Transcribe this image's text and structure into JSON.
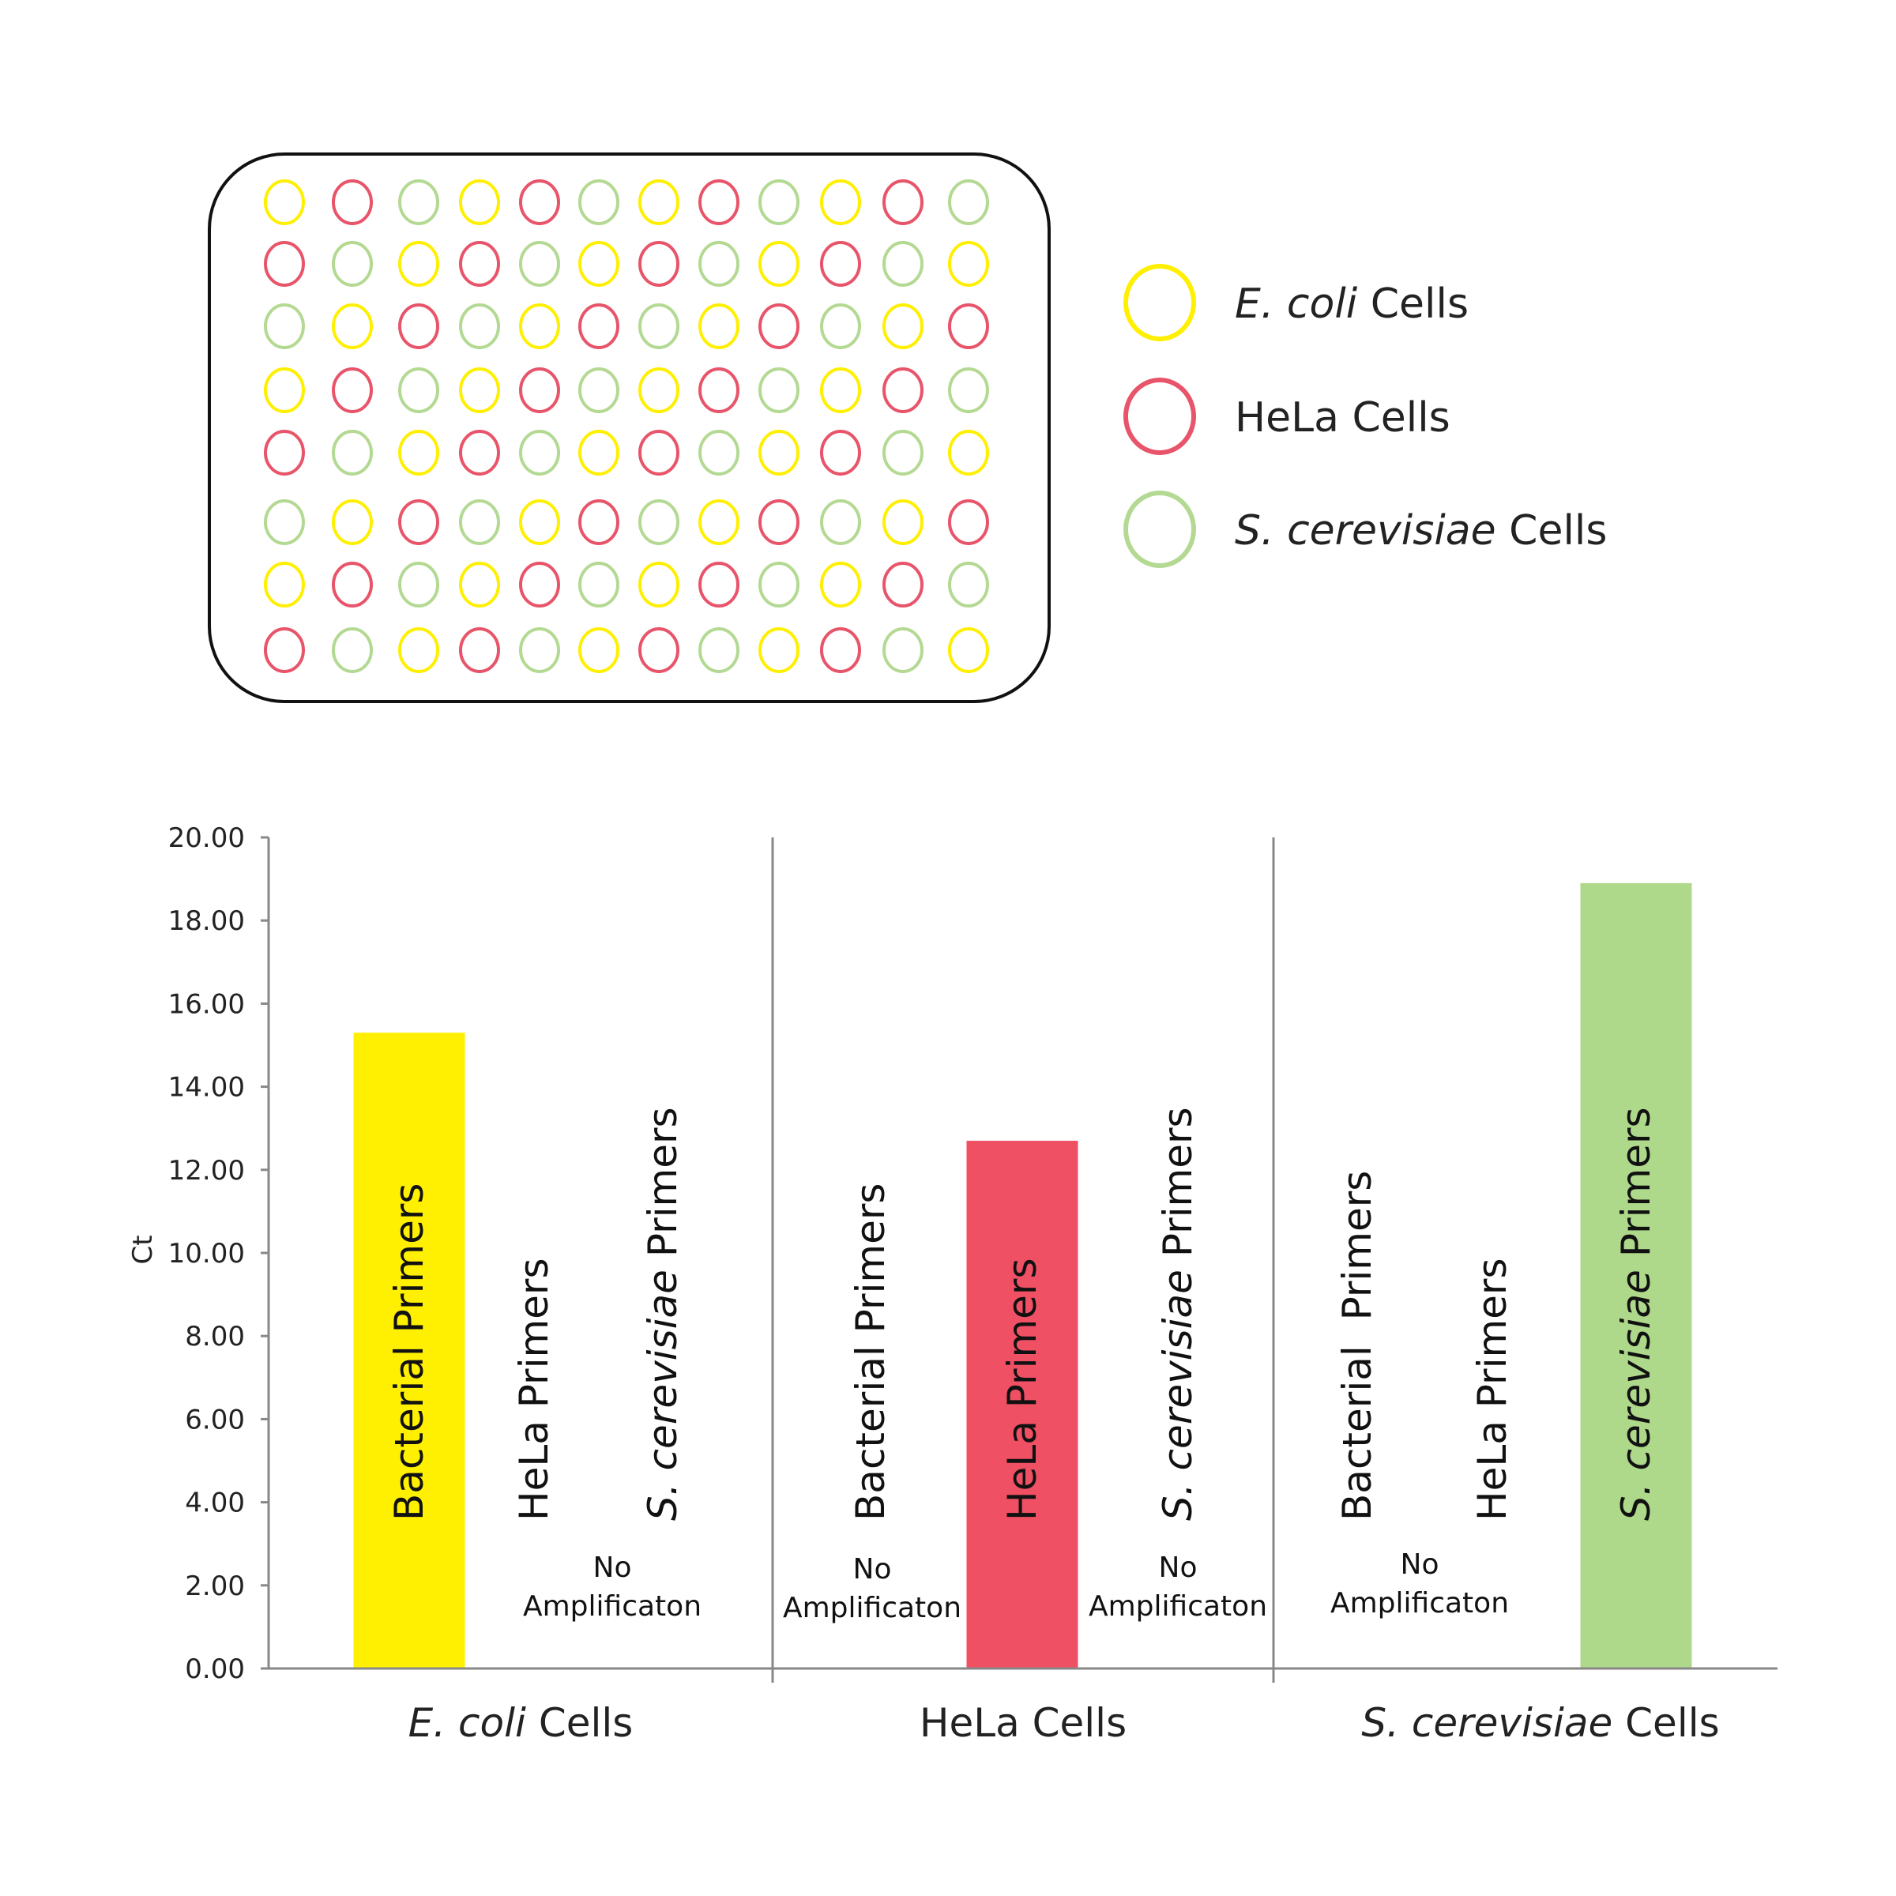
{
  "colors": {
    "ecoli": "#FFEF00",
    "hela": "#F05064",
    "scerevisiae": "#AED88A",
    "ecoli_well": "#FFEF00",
    "hela_well": "#E8546A",
    "scerevisiae_well": "#B3D992",
    "axis": "#888888",
    "plate_border": "#111111"
  },
  "plate": {
    "rows": [
      [
        "E",
        "H",
        "S",
        "E",
        "H",
        "S",
        "E",
        "H",
        "S",
        "E",
        "H",
        "S"
      ],
      [
        "H",
        "S",
        "E",
        "H",
        "S",
        "E",
        "H",
        "S",
        "E",
        "H",
        "S",
        "E"
      ],
      [
        "S",
        "E",
        "H",
        "S",
        "E",
        "H",
        "S",
        "E",
        "H",
        "S",
        "E",
        "H"
      ],
      [
        "E",
        "H",
        "S",
        "E",
        "H",
        "S",
        "E",
        "H",
        "S",
        "E",
        "H",
        "S"
      ],
      [
        "H",
        "S",
        "E",
        "H",
        "S",
        "E",
        "H",
        "S",
        "E",
        "H",
        "S",
        "E"
      ],
      [
        "S",
        "E",
        "H",
        "S",
        "E",
        "H",
        "S",
        "E",
        "H",
        "S",
        "E",
        "H"
      ],
      [
        "E",
        "H",
        "S",
        "E",
        "H",
        "S",
        "E",
        "H",
        "S",
        "E",
        "H",
        "S"
      ],
      [
        "H",
        "S",
        "E",
        "H",
        "S",
        "E",
        "H",
        "S",
        "E",
        "H",
        "S",
        "E"
      ]
    ]
  },
  "legend": [
    {
      "key": "ecoli",
      "italic": "E. coli",
      "plain": " Cells"
    },
    {
      "key": "hela",
      "italic": "",
      "plain": "HeLa Cells"
    },
    {
      "key": "scerevisiae",
      "italic": "S. cerevisiae",
      "plain": " Cells"
    }
  ],
  "chart_data": {
    "type": "bar",
    "ylabel": "Ct",
    "ylim": [
      0,
      20
    ],
    "yticks": [
      "0.00",
      "2.00",
      "4.00",
      "6.00",
      "8.00",
      "10.00",
      "12.00",
      "14.00",
      "16.00",
      "18.00",
      "20.00"
    ],
    "groups": [
      {
        "label_italic": "E. coli",
        "label_plain": " Cells",
        "bars": [
          {
            "primer_italic": "",
            "primer_plain": "Bacterial Primers",
            "value": 15.3,
            "color": "ecoli",
            "amplified": true
          },
          {
            "primer_italic": "",
            "primer_plain": "HeLa Primers",
            "value": 0,
            "color": "none",
            "amplified": false
          },
          {
            "primer_italic": "S. cerevisiae",
            "primer_plain": " Primers",
            "value": 0,
            "color": "none",
            "amplified": false
          }
        ]
      },
      {
        "label_italic": "",
        "label_plain": "HeLa Cells",
        "bars": [
          {
            "primer_italic": "",
            "primer_plain": "Bacterial Primers",
            "value": 0,
            "color": "none",
            "amplified": false
          },
          {
            "primer_italic": "",
            "primer_plain": "HeLa Primers",
            "value": 12.7,
            "color": "hela",
            "amplified": true
          },
          {
            "primer_italic": "S. cerevisiae",
            "primer_plain": " Primers",
            "value": 0,
            "color": "none",
            "amplified": false
          }
        ]
      },
      {
        "label_italic": "S. cerevisiae",
        "label_plain": " Cells",
        "bars": [
          {
            "primer_italic": "",
            "primer_plain": "Bacterial  Primers",
            "value": 0,
            "color": "none",
            "amplified": false
          },
          {
            "primer_italic": "",
            "primer_plain": "HeLa Primers",
            "value": 0,
            "color": "none",
            "amplified": false
          },
          {
            "primer_italic": "S. cerevisiae",
            "primer_plain": " Primers",
            "value": 18.9,
            "color": "scerevisiae",
            "amplified": true
          }
        ]
      }
    ],
    "no_amp_line1": "No",
    "no_amp_line2": "Amplificaton",
    "no_amp_positions": [
      {
        "group": 0,
        "between": [
          1,
          2
        ]
      },
      {
        "group": 1,
        "bar": 0
      },
      {
        "group": 1,
        "bar": 2
      },
      {
        "group": 2,
        "between": [
          0,
          1
        ]
      }
    ]
  }
}
